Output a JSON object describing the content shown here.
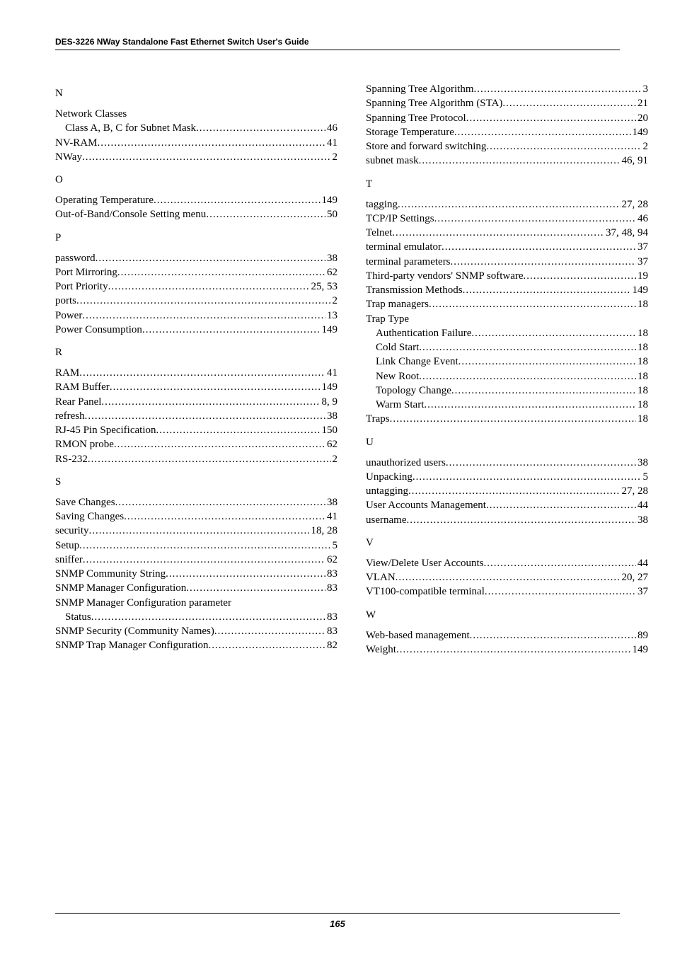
{
  "header": "DES-3226 NWay Standalone Fast Ethernet Switch User's Guide",
  "page_number": "165",
  "colors": {
    "text": "#000000",
    "background": "#ffffff",
    "rule": "#000000"
  },
  "typography": {
    "body_font": "Times New Roman",
    "body_size_pt": 11,
    "header_font": "Arial",
    "header_size_pt": 9,
    "footer_font": "Arial",
    "footer_size_pt": 10
  },
  "left_sections": [
    {
      "letter": "N",
      "entries": [
        {
          "label": "Network Classes",
          "page": "",
          "nopage": true
        },
        {
          "label": "Class A, B, C for Subnet Mask",
          "page": "46",
          "sub": true
        },
        {
          "label": "NV-RAM",
          "page": "41"
        },
        {
          "label": "NWay",
          "page": "2"
        }
      ]
    },
    {
      "letter": "O",
      "entries": [
        {
          "label": "Operating Temperature",
          "page": "149"
        },
        {
          "label": "Out-of-Band/Console Setting menu",
          "page": "50"
        }
      ]
    },
    {
      "letter": "P",
      "entries": [
        {
          "label": "password",
          "page": "38"
        },
        {
          "label": "Port Mirroring",
          "page": "62"
        },
        {
          "label": "Port Priority",
          "page": "25, 53"
        },
        {
          "label": "ports",
          "page": "2"
        },
        {
          "label": "Power",
          "page": "13"
        },
        {
          "label": "Power Consumption",
          "page": "149"
        }
      ]
    },
    {
      "letter": "R",
      "entries": [
        {
          "label": "RAM",
          "page": "41"
        },
        {
          "label": "RAM Buffer",
          "page": "149"
        },
        {
          "label": "Rear Panel",
          "page": "8, 9"
        },
        {
          "label": "refresh",
          "page": "38"
        },
        {
          "label": "RJ-45 Pin Specification",
          "page": "150"
        },
        {
          "label": "RMON probe",
          "page": "62"
        },
        {
          "label": "RS-232",
          "page": "2"
        }
      ]
    },
    {
      "letter": "S",
      "entries": [
        {
          "label": "Save Changes",
          "page": "38"
        },
        {
          "label": "Saving Changes",
          "page": "41"
        },
        {
          "label": "security",
          "page": "18, 28"
        },
        {
          "label": "Setup",
          "page": "5"
        },
        {
          "label": "sniffer",
          "page": "62"
        },
        {
          "label": "SNMP Community String",
          "page": "83"
        },
        {
          "label": "SNMP Manager Configuration",
          "page": "83"
        },
        {
          "label": "SNMP Manager Configuration parameter",
          "page": "",
          "nopage": true
        },
        {
          "label": "Status",
          "page": "83",
          "sub": true
        },
        {
          "label": "SNMP Security (Community Names)",
          "page": "83"
        },
        {
          "label": "SNMP Trap Manager Configuration",
          "page": "82"
        }
      ]
    }
  ],
  "right_sections": [
    {
      "letter": "",
      "entries": [
        {
          "label": "Spanning Tree Algorithm",
          "page": "3"
        },
        {
          "label": "Spanning Tree Algorithm (STA)",
          "page": "21"
        },
        {
          "label": "Spanning Tree Protocol",
          "page": "20"
        },
        {
          "label": "Storage Temperature",
          "page": "149"
        },
        {
          "label": "Store and forward switching",
          "page": "2"
        },
        {
          "label": "subnet mask",
          "page": "46, 91"
        }
      ]
    },
    {
      "letter": "T",
      "entries": [
        {
          "label": "tagging",
          "page": "27, 28"
        },
        {
          "label": "TCP/IP Settings",
          "page": "46"
        },
        {
          "label": "Telnet",
          "page": "37, 48, 94"
        },
        {
          "label": "terminal emulator",
          "page": "37"
        },
        {
          "label": "terminal parameters",
          "page": "37"
        },
        {
          "label": "Third-party vendors' SNMP software",
          "page": "19"
        },
        {
          "label": "Transmission Methods",
          "page": "149"
        },
        {
          "label": "Trap managers",
          "page": "18"
        },
        {
          "label": "Trap Type",
          "page": "",
          "nopage": true
        },
        {
          "label": "Authentication Failure",
          "page": "18",
          "sub": true
        },
        {
          "label": "Cold Start",
          "page": "18",
          "sub": true
        },
        {
          "label": "Link Change Event",
          "page": "18",
          "sub": true
        },
        {
          "label": "New Root",
          "page": "18",
          "sub": true
        },
        {
          "label": "Topology Change",
          "page": "18",
          "sub": true
        },
        {
          "label": "Warm Start",
          "page": "18",
          "sub": true
        },
        {
          "label": "Traps",
          "page": "18"
        }
      ]
    },
    {
      "letter": "U",
      "entries": [
        {
          "label": "unauthorized users",
          "page": "38"
        },
        {
          "label": "Unpacking",
          "page": "5"
        },
        {
          "label": "untagging",
          "page": "27, 28"
        },
        {
          "label": "User Accounts Management",
          "page": "44"
        },
        {
          "label": "username",
          "page": "38"
        }
      ]
    },
    {
      "letter": "V",
      "entries": [
        {
          "label": "View/Delete User Accounts",
          "page": "44"
        },
        {
          "label": "VLAN",
          "page": "20, 27"
        },
        {
          "label": "VT100-compatible terminal",
          "page": "37"
        }
      ]
    },
    {
      "letter": "W",
      "entries": [
        {
          "label": "Web-based management",
          "page": "89"
        },
        {
          "label": "Weight",
          "page": "149"
        }
      ]
    }
  ]
}
